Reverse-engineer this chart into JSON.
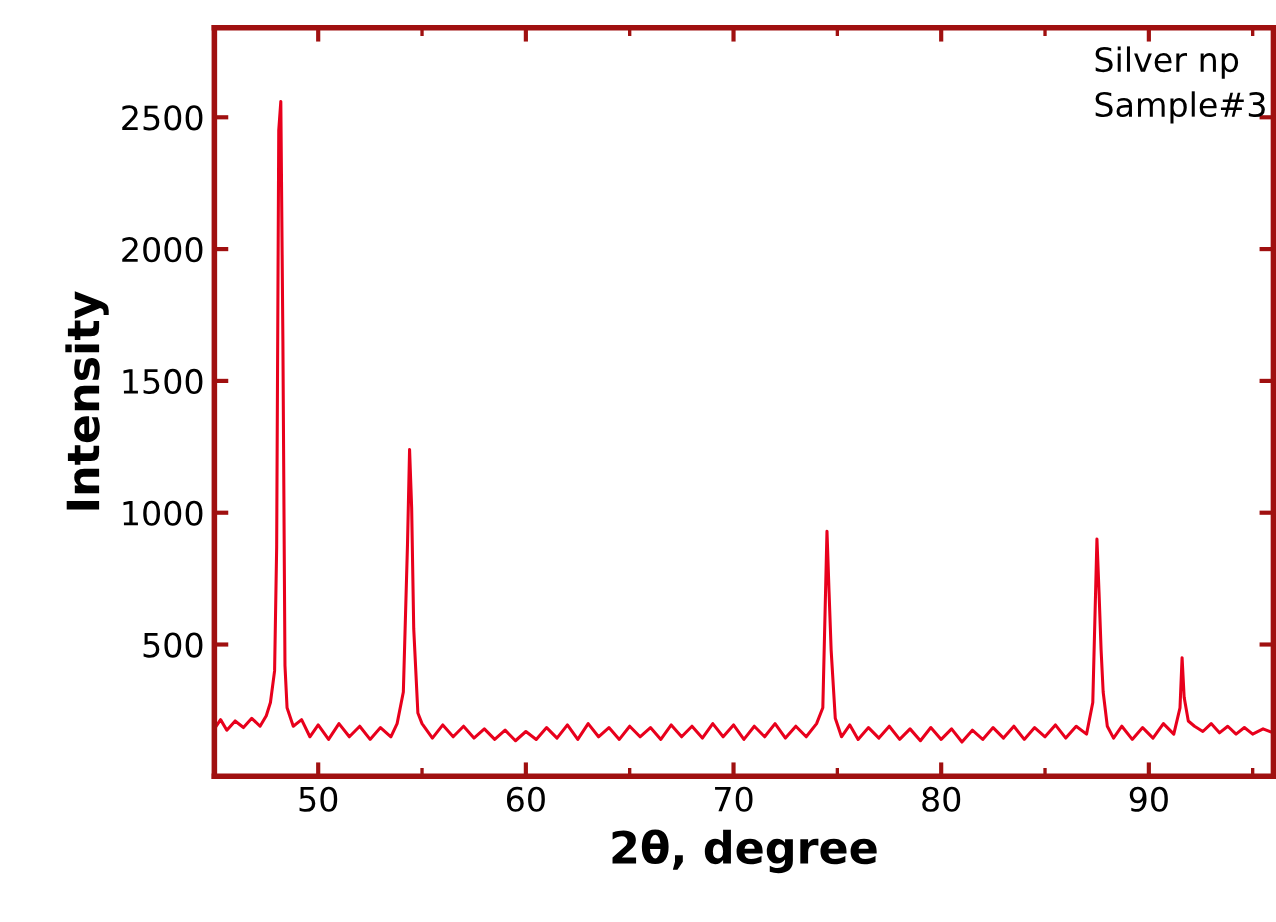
{
  "chart_data": {
    "type": "line",
    "xlabel": "2θ, degree",
    "ylabel": "Intensity",
    "annotations": [
      "Silver np\nSample#3"
    ],
    "x": [
      45.0,
      45.3,
      45.6,
      46.0,
      46.4,
      46.8,
      47.2,
      47.5,
      47.7,
      47.9,
      48.0,
      48.1,
      48.2,
      48.3,
      48.4,
      48.5,
      48.8,
      49.2,
      49.6,
      50.0,
      50.5,
      51.0,
      51.5,
      52.0,
      52.5,
      53.0,
      53.5,
      53.8,
      54.1,
      54.3,
      54.4,
      54.5,
      54.6,
      54.8,
      55.0,
      55.5,
      56.0,
      56.5,
      57.0,
      57.5,
      58.0,
      58.5,
      59.0,
      59.5,
      60.0,
      60.5,
      61.0,
      61.5,
      62.0,
      62.5,
      63.0,
      63.5,
      64.0,
      64.5,
      65.0,
      65.5,
      66.0,
      66.5,
      67.0,
      67.5,
      68.0,
      68.5,
      69.0,
      69.5,
      70.0,
      70.5,
      71.0,
      71.5,
      72.0,
      72.5,
      73.0,
      73.5,
      74.0,
      74.3,
      74.5,
      74.6,
      74.7,
      74.9,
      75.2,
      75.6,
      76.0,
      76.5,
      77.0,
      77.5,
      78.0,
      78.5,
      79.0,
      79.5,
      80.0,
      80.5,
      81.0,
      81.5,
      82.0,
      82.5,
      83.0,
      83.5,
      84.0,
      84.5,
      85.0,
      85.5,
      86.0,
      86.5,
      87.0,
      87.3,
      87.5,
      87.6,
      87.7,
      87.8,
      88.0,
      88.3,
      88.7,
      89.2,
      89.7,
      90.2,
      90.7,
      91.2,
      91.5,
      91.6,
      91.7,
      91.9,
      92.2,
      92.6,
      93.0,
      93.4,
      93.8,
      94.2,
      94.6,
      95.0,
      95.5,
      96.0
    ],
    "series": [
      {
        "color": "#e8001c",
        "values": [
          180,
          215,
          175,
          210,
          185,
          220,
          190,
          230,
          280,
          400,
          870,
          2450,
          2560,
          1650,
          420,
          260,
          190,
          215,
          150,
          195,
          140,
          200,
          150,
          190,
          140,
          185,
          150,
          200,
          320,
          880,
          1240,
          1020,
          560,
          240,
          200,
          145,
          195,
          150,
          190,
          145,
          180,
          140,
          175,
          135,
          170,
          140,
          185,
          145,
          195,
          140,
          200,
          150,
          185,
          140,
          190,
          150,
          185,
          140,
          195,
          150,
          190,
          145,
          200,
          150,
          195,
          140,
          190,
          150,
          200,
          145,
          190,
          150,
          200,
          260,
          930,
          700,
          480,
          220,
          150,
          195,
          140,
          185,
          145,
          190,
          140,
          180,
          135,
          185,
          140,
          180,
          130,
          175,
          140,
          185,
          145,
          190,
          140,
          185,
          150,
          195,
          145,
          190,
          160,
          280,
          900,
          700,
          480,
          320,
          190,
          145,
          190,
          140,
          185,
          145,
          200,
          160,
          260,
          450,
          300,
          210,
          190,
          170,
          200,
          165,
          190,
          160,
          185,
          160,
          180,
          165
        ]
      }
    ],
    "xlim": [
      45,
      96
    ],
    "ylim": [
      0,
      2840
    ],
    "xticks": [
      50,
      60,
      70,
      80,
      90
    ],
    "yticks": [
      500,
      1000,
      1500,
      2000,
      2500
    ],
    "grid": false,
    "legend": false,
    "marker": "none",
    "line_style": "solid"
  }
}
